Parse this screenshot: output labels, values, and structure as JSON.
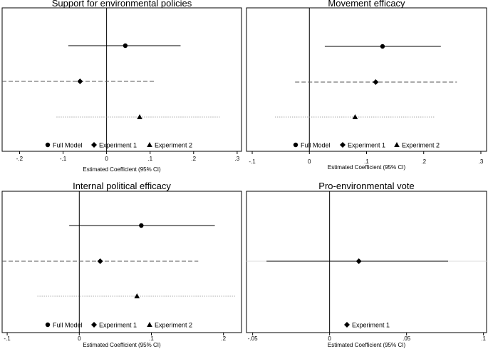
{
  "chart_data": [
    {
      "type": "scatter",
      "title": "Support for environmental policies",
      "xlabel": "Estimated Coefficient (95% CI)",
      "xlim": [
        -0.24,
        0.31
      ],
      "xticks": [
        -0.2,
        -0.1,
        0,
        0.1,
        0.2,
        0.3
      ],
      "tick_labels": [
        "-.2",
        "-.1",
        "0",
        ".1",
        ".2",
        ".3"
      ],
      "series": [
        {
          "name": "Full Model",
          "marker": "circle",
          "line": "solid",
          "estimate": 0.043,
          "ci": [
            -0.088,
            0.17
          ]
        },
        {
          "name": "Experiment 1",
          "marker": "diamond",
          "line": "dashed",
          "estimate": -0.061,
          "ci": [
            -0.24,
            0.112
          ]
        },
        {
          "name": "Experiment 2",
          "marker": "triangle",
          "line": "dotted",
          "estimate": 0.076,
          "ci": [
            -0.115,
            0.26
          ]
        }
      ]
    },
    {
      "type": "scatter",
      "title": "Movement efficacy",
      "xlabel": "Estimated Coefficient (95% CI)",
      "xlim": [
        -0.11,
        0.31
      ],
      "xticks": [
        -0.1,
        0,
        0.1,
        0.2,
        0.3
      ],
      "tick_labels": [
        "-.1",
        "0",
        ".1",
        ".2",
        ".3"
      ],
      "series": [
        {
          "name": "Full Model",
          "marker": "circle",
          "line": "solid",
          "estimate": 0.128,
          "ci": [
            0.027,
            0.23
          ]
        },
        {
          "name": "Experiment 1",
          "marker": "diamond",
          "line": "dashed",
          "estimate": 0.116,
          "ci": [
            -0.025,
            0.258
          ]
        },
        {
          "name": "Experiment 2",
          "marker": "triangle",
          "line": "dotted",
          "estimate": 0.08,
          "ci": [
            -0.06,
            0.22
          ]
        }
      ]
    },
    {
      "type": "scatter",
      "title": "Internal political efficacy",
      "xlabel": "Estimated Coefficient (95% CI)",
      "xlim": [
        -0.107,
        0.225
      ],
      "xticks": [
        -0.1,
        0,
        0.1,
        0.2
      ],
      "tick_labels": [
        "-.1",
        "0",
        ".1",
        ".2"
      ],
      "series": [
        {
          "name": "Full Model",
          "marker": "circle",
          "line": "solid",
          "estimate": 0.086,
          "ci": [
            -0.014,
            0.188
          ]
        },
        {
          "name": "Experiment 1",
          "marker": "diamond",
          "line": "dashed",
          "estimate": 0.029,
          "ci": [
            -0.107,
            0.165
          ]
        },
        {
          "name": "Experiment 2",
          "marker": "triangle",
          "line": "dotted",
          "estimate": 0.08,
          "ci": [
            -0.058,
            0.216
          ]
        }
      ]
    },
    {
      "type": "scatter",
      "title": "Pro-environmental vote",
      "xlabel": "Estimated Coefficient (95% CI)",
      "xlim": [
        -0.054,
        0.102
      ],
      "xticks": [
        -0.05,
        0,
        0.05,
        0.1
      ],
      "tick_labels": [
        "-.05",
        "0",
        ".05",
        ".1"
      ],
      "series": [
        {
          "name": "Experiment 1",
          "marker": "diamond",
          "line": "solid",
          "estimate": 0.019,
          "ci": [
            -0.041,
            0.077
          ]
        }
      ]
    }
  ],
  "colors": {
    "ink": "#000000",
    "dashed": "#555555",
    "dotted": "#999999",
    "faint": "#dddddd"
  }
}
